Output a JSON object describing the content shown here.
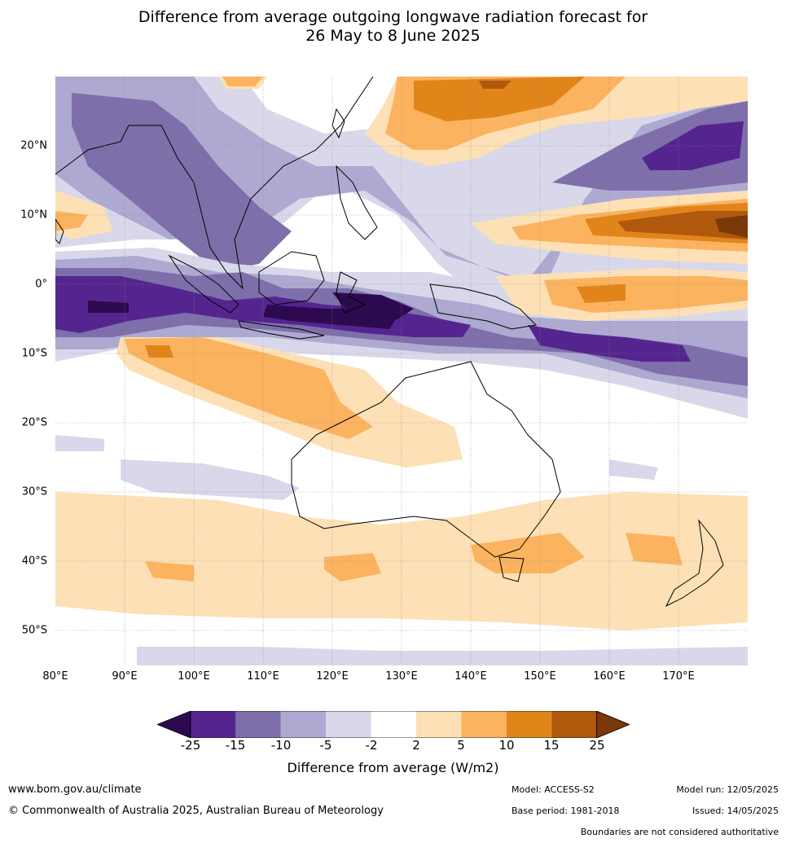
{
  "title": {
    "line1": "Difference from average outgoing longwave radiation forecast for",
    "line2": "26 May to 8 June 2025"
  },
  "map": {
    "lat_labels": [
      "20°N",
      "10°N",
      "0°",
      "10°S",
      "20°S",
      "30°S",
      "40°S",
      "50°S"
    ],
    "lon_labels": [
      "80°E",
      "90°E",
      "100°E",
      "110°E",
      "120°E",
      "130°E",
      "140°E",
      "150°E",
      "160°E",
      "170°E"
    ],
    "colors": {
      "neg_extreme": "#2d0a50",
      "neg25_15": "#55258f",
      "neg15_10": "#7e6fab",
      "neg10_5": "#ada9d0",
      "neg5_2": "#d8d8ea",
      "neutral": "#ffffff",
      "pos2_5": "#fde0b5",
      "pos5_10": "#fbb35f",
      "pos10_15": "#e1841a",
      "pos15_25": "#b0580c",
      "pos_extreme": "#7a3707",
      "coastline": "#000000",
      "border": "#888888"
    }
  },
  "colorbar": {
    "ticks": [
      "-25",
      "-15",
      "-10",
      "-5",
      "-2",
      "2",
      "5",
      "10",
      "15",
      "25"
    ],
    "label": "Difference from average (W/m2)"
  },
  "footer": {
    "website": "www.bom.gov.au/climate",
    "copyright": "© Commonwealth of Australia 2025, Australian Bureau of Meteorology",
    "model": "Model: ACCESS-S2",
    "base_period": "Base period: 1981-2018",
    "model_run": "Model run: 12/05/2025",
    "issued": "Issued: 14/05/2025",
    "disclaimer": "Boundaries are not considered authoritative"
  }
}
